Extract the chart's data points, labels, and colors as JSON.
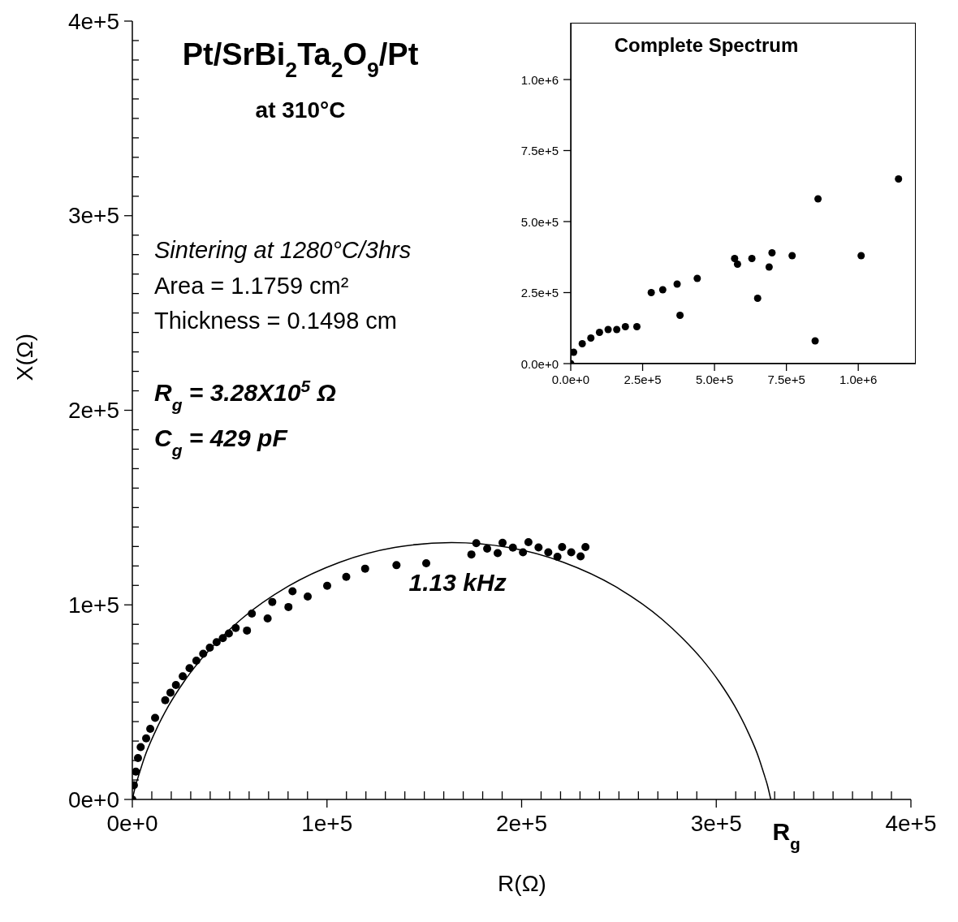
{
  "chart_data": [
    {
      "type": "scatter",
      "title": "Pt/SrBi$_{2}$Ta$_{2}$O$_{9}$/Pt",
      "subtitle": "at 310°C",
      "xlabel": "R(Ω)",
      "ylabel": "X(Ω)",
      "marker": "circle",
      "xlim": [
        0,
        400000
      ],
      "ylim": [
        0,
        400000
      ],
      "xticks": [
        {
          "value": 0,
          "label": "0e+0"
        },
        {
          "value": 10000,
          "label": null
        },
        {
          "value": 20000,
          "label": null
        },
        {
          "value": 30000,
          "label": null
        },
        {
          "value": 40000,
          "label": null
        },
        {
          "value": 50000,
          "label": null
        },
        {
          "value": 60000,
          "label": null
        },
        {
          "value": 70000,
          "label": null
        },
        {
          "value": 80000,
          "label": null
        },
        {
          "value": 90000,
          "label": null
        },
        {
          "value": 100000,
          "label": "1e+5"
        },
        {
          "value": 110000,
          "label": null
        },
        {
          "value": 120000,
          "label": null
        },
        {
          "value": 130000,
          "label": null
        },
        {
          "value": 140000,
          "label": null
        },
        {
          "value": 150000,
          "label": null
        },
        {
          "value": 160000,
          "label": null
        },
        {
          "value": 170000,
          "label": null
        },
        {
          "value": 180000,
          "label": null
        },
        {
          "value": 190000,
          "label": null
        },
        {
          "value": 200000,
          "label": "2e+5"
        },
        {
          "value": 210000,
          "label": null
        },
        {
          "value": 220000,
          "label": null
        },
        {
          "value": 230000,
          "label": null
        },
        {
          "value": 240000,
          "label": null
        },
        {
          "value": 250000,
          "label": null
        },
        {
          "value": 260000,
          "label": null
        },
        {
          "value": 270000,
          "label": null
        },
        {
          "value": 280000,
          "label": null
        },
        {
          "value": 290000,
          "label": null
        },
        {
          "value": 300000,
          "label": "3e+5"
        },
        {
          "value": 310000,
          "label": null
        },
        {
          "value": 320000,
          "label": null
        },
        {
          "value": 330000,
          "label": null
        },
        {
          "value": 340000,
          "label": null
        },
        {
          "value": 350000,
          "label": null
        },
        {
          "value": 360000,
          "label": null
        },
        {
          "value": 370000,
          "label": null
        },
        {
          "value": 380000,
          "label": null
        },
        {
          "value": 390000,
          "label": null
        },
        {
          "value": 400000,
          "label": "4e+5"
        }
      ],
      "yticks": [
        {
          "value": 0,
          "label": "0e+0"
        },
        {
          "value": 10000,
          "label": null
        },
        {
          "value": 20000,
          "label": null
        },
        {
          "value": 30000,
          "label": null
        },
        {
          "value": 40000,
          "label": null
        },
        {
          "value": 50000,
          "label": null
        },
        {
          "value": 60000,
          "label": null
        },
        {
          "value": 70000,
          "label": null
        },
        {
          "value": 80000,
          "label": null
        },
        {
          "value": 90000,
          "label": null
        },
        {
          "value": 100000,
          "label": "1e+5"
        },
        {
          "value": 110000,
          "label": null
        },
        {
          "value": 120000,
          "label": null
        },
        {
          "value": 130000,
          "label": null
        },
        {
          "value": 140000,
          "label": null
        },
        {
          "value": 150000,
          "label": null
        },
        {
          "value": 160000,
          "label": null
        },
        {
          "value": 170000,
          "label": null
        },
        {
          "value": 180000,
          "label": null
        },
        {
          "value": 190000,
          "label": null
        },
        {
          "value": 200000,
          "label": "2e+5"
        },
        {
          "value": 210000,
          "label": null
        },
        {
          "value": 220000,
          "label": null
        },
        {
          "value": 230000,
          "label": null
        },
        {
          "value": 240000,
          "label": null
        },
        {
          "value": 250000,
          "label": null
        },
        {
          "value": 260000,
          "label": null
        },
        {
          "value": 270000,
          "label": null
        },
        {
          "value": 280000,
          "label": null
        },
        {
          "value": 290000,
          "label": null
        },
        {
          "value": 300000,
          "label": "3e+5"
        },
        {
          "value": 310000,
          "label": null
        },
        {
          "value": 320000,
          "label": null
        },
        {
          "value": 330000,
          "label": null
        },
        {
          "value": 340000,
          "label": null
        },
        {
          "value": 350000,
          "label": null
        },
        {
          "value": 360000,
          "label": null
        },
        {
          "value": 370000,
          "label": null
        },
        {
          "value": 380000,
          "label": null
        },
        {
          "value": 390000,
          "label": null
        },
        {
          "value": 400000,
          "label": "4e+5"
        }
      ],
      "annotations": [
        "Sintering at 1280°C/3hrs",
        "Area = 1.1759 cm²",
        "Thickness = 0.1498 cm",
        "R$_{g}$ = 3.28X10$^{5}$ Ω",
        "C$_{g}$ = 429 pF",
        {
          "text": "1.13 kHz",
          "x": 176700,
          "y": 131700
        },
        {
          "text": "R$_{g}$",
          "x": 328000,
          "y": 0
        }
      ],
      "series": [
        {
          "color": "#000000",
          "x": [
            0,
            800,
            1800,
            2900,
            4300,
            7100,
            9200,
            11700,
            16900,
            19600,
            22400,
            25900,
            29400,
            32900,
            36400,
            39800,
            43300,
            46500,
            49600,
            53100,
            58900,
            61400,
            69500,
            71900,
            80200,
            82300,
            90100,
            100100,
            109900,
            119600,
            135700,
            151000,
            174200,
            176700,
            182300,
            187700,
            190200,
            195500,
            200700,
            203500,
            208700,
            213700,
            218400,
            220800,
            225500,
            230300,
            232800
          ],
          "values": [
            0,
            7300,
            14300,
            21300,
            26900,
            31400,
            36300,
            41900,
            51000,
            54900,
            58800,
            63300,
            67500,
            71300,
            74900,
            78000,
            80800,
            82900,
            85300,
            88100,
            86800,
            95500,
            93000,
            101500,
            98900,
            107000,
            104300,
            109800,
            114400,
            118600,
            120400,
            121400,
            125900,
            131700,
            128900,
            126600,
            131900,
            129400,
            127000,
            132200,
            129500,
            127000,
            124700,
            129700,
            127000,
            124900,
            129700
          ]
        },
        {
          "type": "line",
          "color": "#000000",
          "marker": "none",
          "x": [
            0,
            1800,
            3500,
            6200,
            11900,
            18600,
            26500,
            35400,
            45300,
            56000,
            80000,
            106600,
            134800,
            164000,
            193200,
            221400,
            248000,
            272000,
            282700,
            292600,
            301500,
            309400,
            316100,
            321800,
            324500,
            326200,
            328000
          ],
          "values": [
            0,
            7600,
            13100,
            21500,
            35100,
            48100,
            60500,
            72100,
            82800,
            92700,
            109500,
            121900,
            129500,
            132000,
            129500,
            121900,
            109500,
            92700,
            82800,
            72100,
            60500,
            48100,
            35100,
            21500,
            13100,
            7600,
            0
          ]
        }
      ]
    },
    {
      "type": "scatter",
      "title": "Complete Spectrum",
      "marker": "circle",
      "xlim": [
        0,
        1200000
      ],
      "ylim": [
        0,
        1200000
      ],
      "xticks": [
        {
          "value": 0,
          "label": "0.0e+0"
        },
        {
          "value": 250000,
          "label": "2.5e+5"
        },
        {
          "value": 500000,
          "label": "5.0e+5"
        },
        {
          "value": 750000,
          "label": "7.5e+5"
        },
        {
          "value": 1000000,
          "label": "1.0e+6"
        }
      ],
      "yticks": [
        {
          "value": 0,
          "label": "0.0e+0"
        },
        {
          "value": 250000,
          "label": "2.5e+5"
        },
        {
          "value": 500000,
          "label": "5.0e+5"
        },
        {
          "value": 750000,
          "label": "7.5e+5"
        },
        {
          "value": 1000000,
          "label": "1.0e+6"
        }
      ],
      "series": [
        {
          "color": "#000000",
          "x": [
            0,
            10000,
            40000,
            70000,
            100000,
            130000,
            160000,
            190000,
            230000,
            280000,
            320000,
            370000,
            380000,
            440000,
            570000,
            580000,
            630000,
            650000,
            690000,
            700000,
            770000,
            850000,
            860000,
            1010000,
            1140000
          ],
          "values": [
            0,
            40000,
            70000,
            90000,
            110000,
            120000,
            120000,
            130000,
            130000,
            250000,
            260000,
            280000,
            170000,
            300000,
            370000,
            350000,
            370000,
            230000,
            340000,
            390000,
            380000,
            80000,
            580000,
            380000,
            650000
          ]
        }
      ]
    }
  ]
}
